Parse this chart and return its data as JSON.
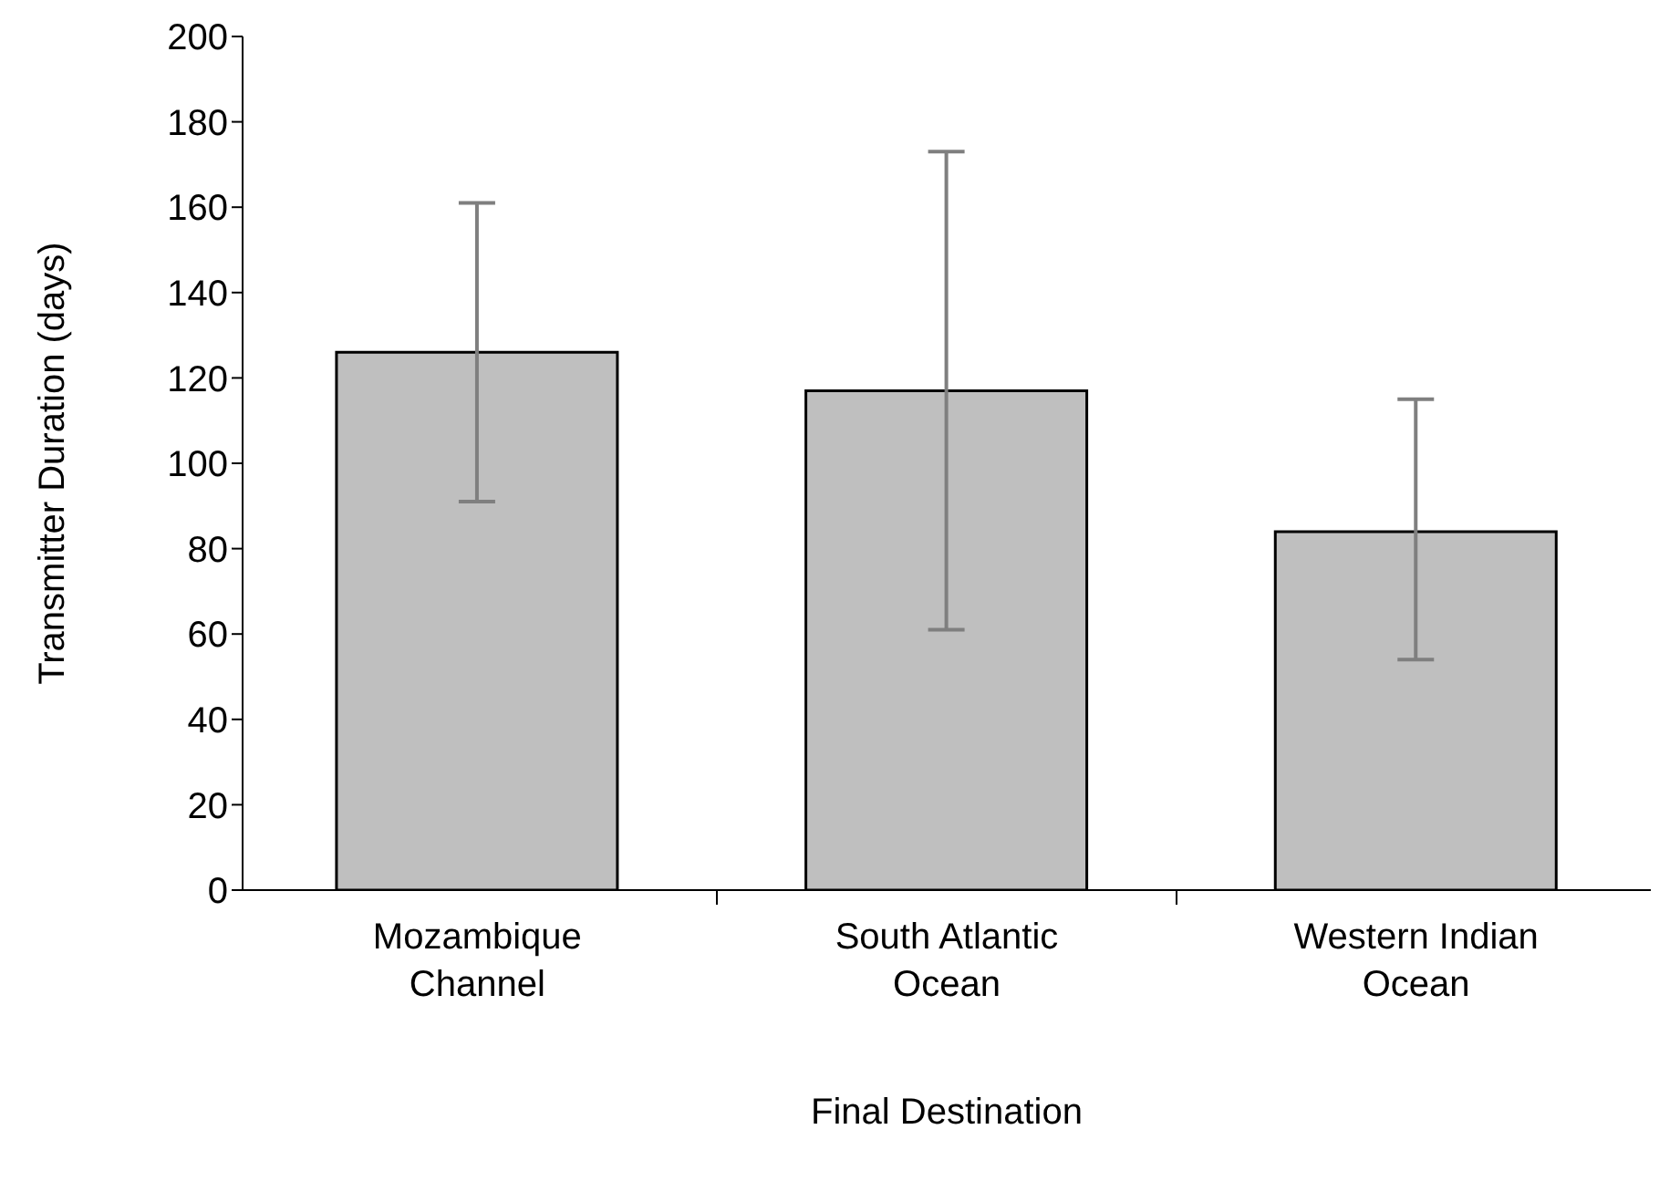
{
  "chart_data": {
    "type": "bar",
    "xlabel": "Final Destination",
    "ylabel": "Transmitter Duration (days)",
    "categories": [
      "Mozambique Channel",
      "South Atlantic Ocean",
      "Western Indian Ocean"
    ],
    "values": [
      126,
      117,
      84
    ],
    "errors": [
      [
        91,
        161
      ],
      [
        61,
        173
      ],
      [
        54,
        115
      ]
    ],
    "color": "#bfbfbf",
    "ylim": [
      0,
      200
    ],
    "yticks": [
      0,
      20,
      40,
      60,
      80,
      100,
      120,
      140,
      160,
      180,
      200
    ],
    "grid": false
  }
}
